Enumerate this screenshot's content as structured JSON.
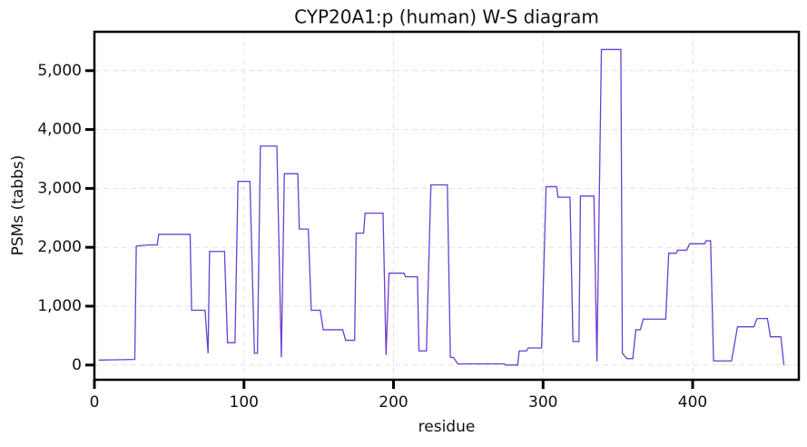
{
  "chart_data": {
    "type": "line",
    "title": "CYP20A1:p (human) W-S diagram",
    "x_label": "residue",
    "y_label": "PSMs (tabbs)",
    "x": [
      3,
      27,
      28,
      36,
      42,
      43,
      64,
      65,
      74,
      76,
      77,
      87,
      89,
      94,
      96,
      104,
      107,
      109,
      111,
      122,
      125,
      127,
      136,
      137,
      143,
      145,
      151,
      153,
      166,
      168,
      174,
      175,
      180,
      181,
      193,
      195,
      197,
      207,
      208,
      216,
      217,
      222,
      225,
      236,
      238,
      240,
      243,
      274,
      275,
      283,
      284,
      289,
      290,
      299,
      302,
      309,
      310,
      318,
      320,
      324,
      325,
      334,
      336,
      339,
      352,
      353,
      356,
      360,
      362,
      365,
      367,
      382,
      384,
      389,
      390,
      396,
      398,
      408,
      409,
      412,
      414,
      426,
      430,
      441,
      443,
      450,
      452,
      459,
      461
    ],
    "series": [
      {
        "name": "PSMs",
        "color": "#6a3fd0",
        "values": [
          85,
          95,
          2020,
          2040,
          2040,
          2220,
          2220,
          930,
          930,
          200,
          1930,
          1930,
          380,
          380,
          3120,
          3120,
          200,
          200,
          3720,
          3720,
          130,
          3250,
          3250,
          2310,
          2310,
          930,
          930,
          600,
          600,
          420,
          420,
          2240,
          2240,
          2580,
          2580,
          170,
          1560,
          1560,
          1500,
          1500,
          240,
          240,
          3060,
          3060,
          130,
          130,
          20,
          20,
          0,
          0,
          240,
          240,
          290,
          290,
          3030,
          3030,
          2850,
          2850,
          400,
          400,
          2870,
          2870,
          60,
          5360,
          5360,
          200,
          110,
          110,
          600,
          600,
          780,
          780,
          1900,
          1900,
          1950,
          1950,
          2060,
          2060,
          2110,
          2110,
          70,
          70,
          650,
          650,
          790,
          790,
          480,
          480,
          0
        ]
      }
    ],
    "xlim": [
      0,
      471
    ],
    "ylim": [
      -250,
      5660
    ],
    "xticks": [
      0,
      100,
      200,
      300,
      400
    ],
    "yticks": [
      0,
      {
        "value": 1000,
        "label": "1,000"
      },
      {
        "value": 2000,
        "label": "2,000"
      },
      {
        "value": 3000,
        "label": "3,000"
      },
      {
        "value": 4000,
        "label": "4,000"
      },
      {
        "value": 5000,
        "label": "5,000"
      }
    ],
    "grid": true
  }
}
